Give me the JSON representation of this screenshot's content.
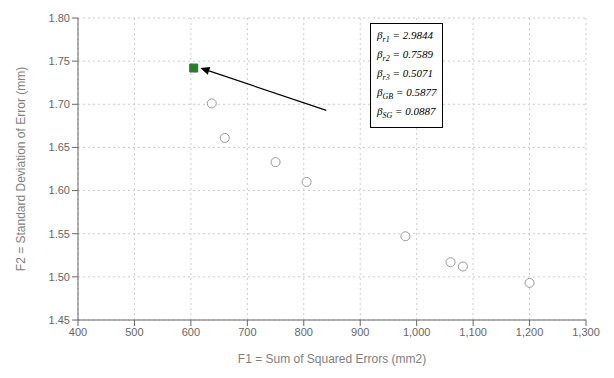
{
  "chart_data": {
    "type": "scatter",
    "xlabel": "F1 = Sum of Squared Errors (mm2)",
    "ylabel": "F2 = Standard Deviation of Error (mm)",
    "series": [
      {
        "x": [
          637,
          660,
          750,
          805,
          980,
          1060,
          1082,
          1200
        ],
        "values": [
          1.701,
          1.661,
          1.633,
          1.61,
          1.547,
          1.517,
          1.512,
          1.493
        ],
        "color": "#999999",
        "marker": "circle_open"
      },
      {
        "x": [
          605
        ],
        "values": [
          1.742
        ],
        "color": "#2d7a2d",
        "marker": "square"
      }
    ],
    "xlim": [
      400,
      1300
    ],
    "ylim": [
      1.45,
      1.8
    ],
    "xticks": [
      400,
      500,
      600,
      700,
      800,
      900,
      {
        "value": 1000,
        "label": "1,000"
      },
      {
        "value": 1100,
        "label": "1,100"
      },
      {
        "value": 1200,
        "label": "1,200"
      },
      {
        "value": 1300,
        "label": "1,300"
      }
    ],
    "yticks": [
      1.45,
      {
        "value": 1.5,
        "label": "1.50"
      },
      1.55,
      {
        "value": 1.6,
        "label": "1.60"
      },
      1.65,
      {
        "value": 1.7,
        "label": "1.70"
      },
      1.75,
      {
        "value": 1.8,
        "label": "1.80"
      }
    ],
    "grid": true,
    "annotations": [
      {
        "lines": [
          {
            "base": "β",
            "sub": "r1",
            "text": " = 2.9844"
          },
          {
            "base": "β",
            "sub": "r2",
            "text": " = 0.7589"
          },
          {
            "base": "β",
            "sub": "r3",
            "text": " = 0.5071"
          },
          {
            "base": "β",
            "sub": "GB",
            "text": " = 0.5877"
          },
          {
            "base": "β",
            "sub": "SG",
            "text": " = 0.0887"
          }
        ],
        "arrow_from": {
          "x": 840,
          "y": 1.693
        },
        "arrow_to": {
          "x": 617,
          "y": 1.742
        }
      }
    ]
  }
}
